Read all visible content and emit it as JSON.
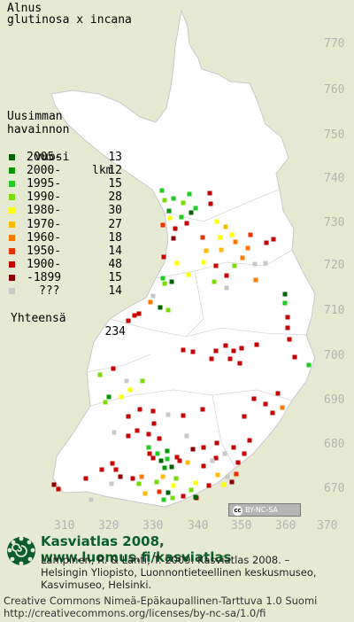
{
  "title": {
    "line1": "Alnus",
    "line2": "glutinosa x incana"
  },
  "legend": {
    "header1": "Uusimman",
    "header2": "havainnon",
    "header3": "vuosi",
    "count_header": "lkm",
    "rows": [
      {
        "label": "2005-",
        "count": "13",
        "color": "#006400"
      },
      {
        "label": "2000-",
        "count": "12",
        "color": "#009900"
      },
      {
        "label": "1995-",
        "count": "15",
        "color": "#22cc22"
      },
      {
        "label": "1990-",
        "count": "28",
        "color": "#77dd00"
      },
      {
        "label": "1980-",
        "count": "30",
        "color": "#ffff00"
      },
      {
        "label": "1970-",
        "count": "27",
        "color": "#ffbb00"
      },
      {
        "label": "1960-",
        "count": "18",
        "color": "#ff7700"
      },
      {
        "label": "1950-",
        "count": "14",
        "color": "#e63300"
      },
      {
        "label": "1900-",
        "count": "48",
        "color": "#c80000"
      },
      {
        "label": "-1899",
        "count": "15",
        "color": "#8a0000"
      },
      {
        "label": "???",
        "count": "14",
        "color": "#c8c8c8"
      }
    ],
    "total_label": "Yhteensä",
    "total": "234"
  },
  "grid_labels": {
    "northings": [
      "770",
      "760",
      "750",
      "740",
      "730",
      "720",
      "710",
      "700",
      "690",
      "680",
      "670"
    ],
    "eastings": [
      "310",
      "320",
      "330",
      "340",
      "350",
      "360",
      "370"
    ]
  },
  "license_badge": {
    "cc": "cc",
    "text": "BY-NC-SA"
  },
  "footer": {
    "brand_title": "Kasviatlas 2008, www.luomus.fi/kasviatlas",
    "citation1": "Lampinen, R. & Lahti, T. 2009: Kasviatlas 2008. –",
    "citation2": "Helsingin Yliopisto, Luonnontieteellinen keskusmuseo,",
    "citation3": "Kasvimuseo, Helsinki.",
    "license1": "Creative Commons Nimeä-Epäkaupallinen-Tarttuva 1.0 Suomi",
    "license2": "http://creativecommons.org/licenses/by-nc-sa/1.0/fi"
  },
  "colors": {
    "background": "#e6ead2",
    "land": "#ffffff",
    "brand": "#0b5e2c"
  }
}
